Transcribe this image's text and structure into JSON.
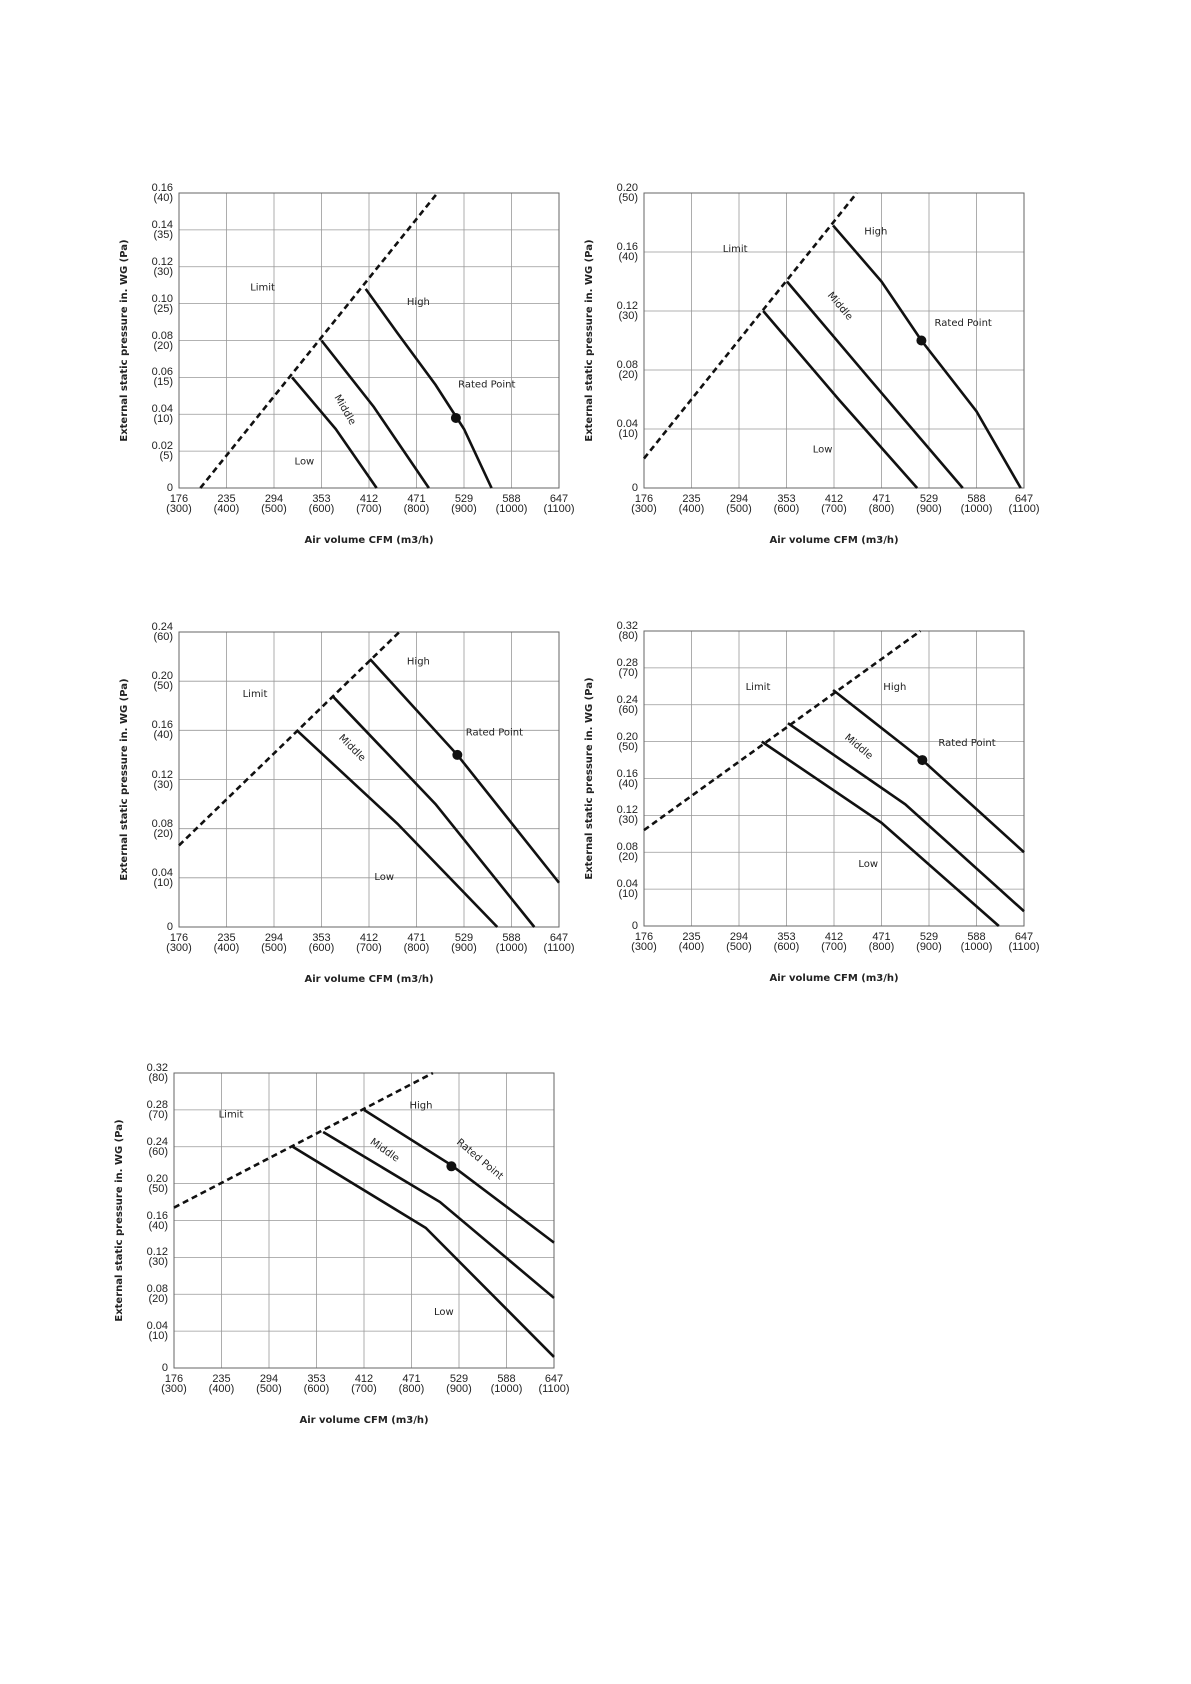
{
  "chart_data": [
    {
      "type": "line",
      "x_label": "Air volume CFM (m3/h)",
      "y_label": "External static pressure in. WG (Pa)",
      "xlim": [
        300,
        1100
      ],
      "ylim": [
        0,
        40
      ],
      "grid": true,
      "xticks": [
        {
          "value": 300,
          "label": "176\n(300)"
        },
        {
          "value": 400,
          "label": "235\n(400)"
        },
        {
          "value": 500,
          "label": "294\n(500)"
        },
        {
          "value": 600,
          "label": "353\n(600)"
        },
        {
          "value": 700,
          "label": "412\n(700)"
        },
        {
          "value": 800,
          "label": "471\n(800)"
        },
        {
          "value": 900,
          "label": "529\n(900)"
        },
        {
          "value": 1000,
          "label": "588\n(1000)"
        },
        {
          "value": 1100,
          "label": "647\n(1100)"
        }
      ],
      "yticks": [
        0,
        {
          "value": 5,
          "label": "0.02\n(5)"
        },
        {
          "value": 10,
          "label": "0.04\n(10)"
        },
        {
          "value": 15,
          "label": "0.06\n(15)"
        },
        {
          "value": 20,
          "label": "0.08\n(20)"
        },
        {
          "value": 25,
          "label": "0.10\n(25)"
        },
        {
          "value": 30,
          "label": "0.12\n(30)"
        },
        {
          "value": 35,
          "label": "0.14\n(35)"
        },
        {
          "value": 40,
          "label": "0.16\n(40)"
        }
      ],
      "series": [
        {
          "name": "Limit",
          "color": "#111111",
          "line_style": "dashed",
          "x": [
            345,
            844
          ],
          "values": [
            0,
            40
          ]
        },
        {
          "name": "High",
          "color": "#111111",
          "x": [
            693,
            760,
            840,
            900,
            958
          ],
          "values": [
            27,
            21,
            14,
            8,
            0
          ]
        },
        {
          "name": "Middle",
          "color": "#111111",
          "x": [
            600,
            710,
            826
          ],
          "values": [
            20,
            11,
            0
          ]
        },
        {
          "name": "Low",
          "color": "#111111",
          "x": [
            538,
            630,
            716
          ],
          "values": [
            15,
            8,
            0
          ]
        }
      ],
      "rated_point": {
        "label": "Rated Point",
        "x": 883,
        "y": 9.5
      }
    },
    {
      "type": "line",
      "x_label": "Air volume CFM (m3/h)",
      "y_label": "External static pressure in. WG (Pa)",
      "xlim": [
        300,
        1100
      ],
      "ylim": [
        0,
        50
      ],
      "grid": true,
      "xticks": [
        {
          "value": 300,
          "label": "176\n(300)"
        },
        {
          "value": 400,
          "label": "235\n(400)"
        },
        {
          "value": 500,
          "label": "294\n(500)"
        },
        {
          "value": 600,
          "label": "353\n(600)"
        },
        {
          "value": 700,
          "label": "412\n(700)"
        },
        {
          "value": 800,
          "label": "471\n(800)"
        },
        {
          "value": 900,
          "label": "529\n(900)"
        },
        {
          "value": 1000,
          "label": "588\n(1000)"
        },
        {
          "value": 1100,
          "label": "647\n(1100)"
        }
      ],
      "yticks": [
        0,
        {
          "value": 10,
          "label": "0.04\n(10)"
        },
        {
          "value": 20,
          "label": "0.08\n(20)"
        },
        {
          "value": 30,
          "label": "0.12\n(30)"
        },
        {
          "value": 40,
          "label": "0.16\n(40)"
        },
        {
          "value": 50,
          "label": "0.20\n(50)"
        }
      ],
      "series": [
        {
          "name": "Limit",
          "color": "#111111",
          "line_style": "dashed",
          "x": [
            300,
            748
          ],
          "values": [
            5,
            50
          ]
        },
        {
          "name": "High",
          "color": "#111111",
          "x": [
            698,
            800,
            884,
            1000,
            1093
          ],
          "values": [
            44.5,
            35,
            25,
            13,
            0
          ]
        },
        {
          "name": "Middle",
          "color": "#111111",
          "x": [
            601,
            780,
            971
          ],
          "values": [
            35,
            18,
            0
          ]
        },
        {
          "name": "Low",
          "color": "#111111",
          "x": [
            551,
            710,
            875
          ],
          "values": [
            30,
            15,
            0
          ]
        }
      ],
      "rated_point": {
        "label": "Rated Point",
        "x": 884,
        "y": 25
      }
    },
    {
      "type": "line",
      "x_label": "Air volume CFM (m3/h)",
      "y_label": "External static pressure in. WG (Pa)",
      "xlim": [
        300,
        1100
      ],
      "ylim": [
        0,
        60
      ],
      "grid": true,
      "xticks": [
        {
          "value": 300,
          "label": "176\n(300)"
        },
        {
          "value": 400,
          "label": "235\n(400)"
        },
        {
          "value": 500,
          "label": "294\n(500)"
        },
        {
          "value": 600,
          "label": "353\n(600)"
        },
        {
          "value": 700,
          "label": "412\n(700)"
        },
        {
          "value": 800,
          "label": "471\n(800)"
        },
        {
          "value": 900,
          "label": "529\n(900)"
        },
        {
          "value": 1000,
          "label": "588\n(1000)"
        },
        {
          "value": 1100,
          "label": "647\n(1100)"
        }
      ],
      "yticks": [
        0,
        {
          "value": 10,
          "label": "0.04\n(10)"
        },
        {
          "value": 20,
          "label": "0.08\n(20)"
        },
        {
          "value": 30,
          "label": "0.12\n(30)"
        },
        {
          "value": 40,
          "label": "0.16\n(40)"
        },
        {
          "value": 50,
          "label": "0.20\n(50)"
        },
        {
          "value": 60,
          "label": "0.24\n(60)"
        }
      ],
      "series": [
        {
          "name": "Limit",
          "color": "#111111",
          "line_style": "dashed",
          "x": [
            300,
            764
          ],
          "values": [
            16.6,
            60
          ]
        },
        {
          "name": "High",
          "color": "#111111",
          "x": [
            702,
            886,
            1100
          ],
          "values": [
            54.5,
            35,
            9
          ]
        },
        {
          "name": "Middle",
          "color": "#111111",
          "x": [
            623,
            840,
            1048
          ],
          "values": [
            47,
            25,
            0
          ]
        },
        {
          "name": "Low",
          "color": "#111111",
          "x": [
            548,
            760,
            970
          ],
          "values": [
            40,
            21,
            0
          ]
        }
      ],
      "rated_point": {
        "label": "Rated Point",
        "x": 886,
        "y": 35
      }
    },
    {
      "type": "line",
      "x_label": "Air volume CFM (m3/h)",
      "y_label": "External static pressure in. WG (Pa)",
      "xlim": [
        300,
        1100
      ],
      "ylim": [
        0,
        80
      ],
      "grid": true,
      "xticks": [
        {
          "value": 300,
          "label": "176\n(300)"
        },
        {
          "value": 400,
          "label": "235\n(400)"
        },
        {
          "value": 500,
          "label": "294\n(500)"
        },
        {
          "value": 600,
          "label": "353\n(600)"
        },
        {
          "value": 700,
          "label": "412\n(700)"
        },
        {
          "value": 800,
          "label": "471\n(800)"
        },
        {
          "value": 900,
          "label": "529\n(900)"
        },
        {
          "value": 1000,
          "label": "588\n(1000)"
        },
        {
          "value": 1100,
          "label": "647\n(1100)"
        }
      ],
      "yticks": [
        0,
        {
          "value": 10,
          "label": "0.04\n(10)"
        },
        {
          "value": 20,
          "label": "0.08\n(20)"
        },
        {
          "value": 30,
          "label": "0.12\n(30)"
        },
        {
          "value": 40,
          "label": "0.16\n(40)"
        },
        {
          "value": 50,
          "label": "0.20\n(50)"
        },
        {
          "value": 60,
          "label": "0.24\n(60)"
        },
        {
          "value": 70,
          "label": "0.28\n(70)"
        },
        {
          "value": 80,
          "label": "0.32\n(80)"
        }
      ],
      "series": [
        {
          "name": "Limit",
          "color": "#111111",
          "line_style": "dashed",
          "x": [
            300,
            882
          ],
          "values": [
            26,
            80
          ]
        },
        {
          "name": "High",
          "color": "#111111",
          "x": [
            698,
            886,
            1100
          ],
          "values": [
            64,
            45,
            20
          ]
        },
        {
          "name": "Middle",
          "color": "#111111",
          "x": [
            603,
            850,
            1100
          ],
          "values": [
            55,
            33,
            4
          ]
        },
        {
          "name": "Low",
          "color": "#111111",
          "x": [
            548,
            800,
            1047
          ],
          "values": [
            50,
            28,
            0
          ]
        }
      ],
      "rated_point": {
        "label": "Rated Point",
        "x": 886,
        "y": 45
      }
    },
    {
      "type": "line",
      "x_label": "Air volume CFM (m3/h)",
      "y_label": "External static pressure in. WG (Pa)",
      "xlim": [
        300,
        1100
      ],
      "ylim": [
        0,
        80
      ],
      "grid": true,
      "xticks": [
        {
          "value": 300,
          "label": "176\n(300)"
        },
        {
          "value": 400,
          "label": "235\n(400)"
        },
        {
          "value": 500,
          "label": "294\n(500)"
        },
        {
          "value": 600,
          "label": "353\n(600)"
        },
        {
          "value": 700,
          "label": "412\n(700)"
        },
        {
          "value": 800,
          "label": "471\n(800)"
        },
        {
          "value": 900,
          "label": "529\n(900)"
        },
        {
          "value": 1000,
          "label": "588\n(1000)"
        },
        {
          "value": 1100,
          "label": "647\n(1100)"
        }
      ],
      "yticks": [
        0,
        {
          "value": 10,
          "label": "0.04\n(10)"
        },
        {
          "value": 20,
          "label": "0.08\n(20)"
        },
        {
          "value": 30,
          "label": "0.12\n(30)"
        },
        {
          "value": 40,
          "label": "0.16\n(40)"
        },
        {
          "value": 50,
          "label": "0.20\n(50)"
        },
        {
          "value": 60,
          "label": "0.24\n(60)"
        },
        {
          "value": 70,
          "label": "0.28\n(70)"
        },
        {
          "value": 80,
          "label": "0.32\n(80)"
        }
      ],
      "series": [
        {
          "name": "Limit",
          "color": "#111111",
          "line_style": "dashed",
          "x": [
            300,
            845
          ],
          "values": [
            43.5,
            80
          ]
        },
        {
          "name": "High",
          "color": "#111111",
          "x": [
            700,
            884,
            1100
          ],
          "values": [
            70,
            55,
            34
          ]
        },
        {
          "name": "Middle",
          "color": "#111111",
          "x": [
            614,
            860,
            1100
          ],
          "values": [
            64,
            45,
            19
          ]
        },
        {
          "name": "Low",
          "color": "#111111",
          "x": [
            550,
            830,
            1100
          ],
          "values": [
            60,
            38,
            3
          ]
        }
      ],
      "rated_point": {
        "label": "Rated Point",
        "x": 884,
        "y": 54.7
      }
    }
  ]
}
